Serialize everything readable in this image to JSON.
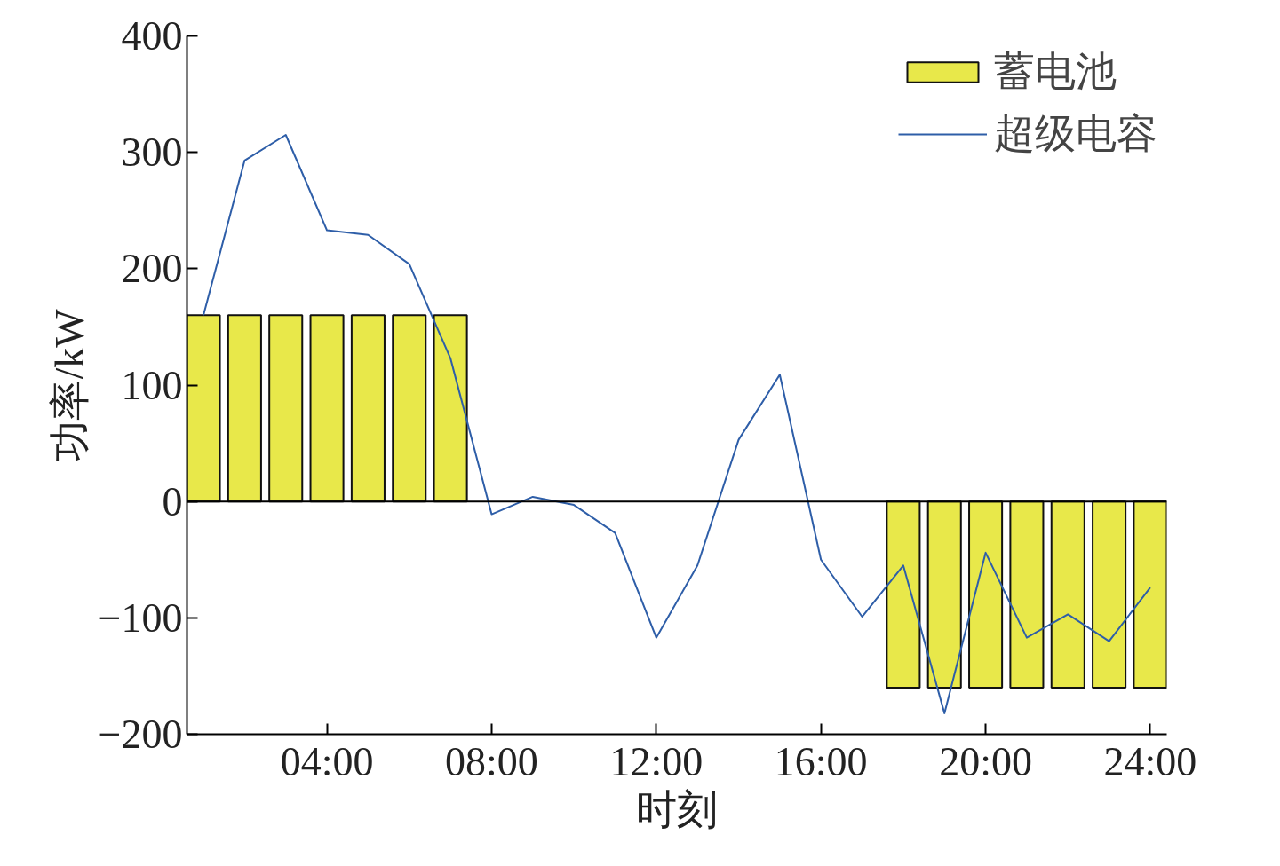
{
  "chart_data": {
    "type": "bar",
    "xlabel": "时刻",
    "ylabel": "功率/kW",
    "x": [
      1,
      2,
      3,
      4,
      5,
      6,
      7,
      8,
      9,
      10,
      11,
      12,
      13,
      14,
      15,
      16,
      17,
      18,
      19,
      20,
      21,
      22,
      23,
      24
    ],
    "series": [
      {
        "name": "蓄电池",
        "color": "#e8e84a",
        "values": [
          160,
          160,
          160,
          160,
          160,
          160,
          160,
          null,
          null,
          null,
          null,
          null,
          null,
          null,
          null,
          null,
          null,
          -160,
          -160,
          -160,
          -160,
          -160,
          -160,
          -160
        ]
      },
      {
        "name": "超级电容",
        "type": "line",
        "color": "#2e5ea8",
        "values": [
          160,
          293,
          315,
          233,
          229,
          204,
          123,
          -11,
          4,
          -3,
          -27,
          -117,
          -55,
          53,
          109,
          -50,
          -99,
          -55,
          -182,
          -44,
          -117,
          -97,
          -120,
          -74
        ]
      }
    ],
    "xlim": [
      0.6,
      24.4
    ],
    "xticks": [
      {
        "value": 4,
        "label": "04:00"
      },
      {
        "value": 8,
        "label": "08:00"
      },
      {
        "value": 12,
        "label": "12:00"
      },
      {
        "value": 16,
        "label": "16:00"
      },
      {
        "value": 20,
        "label": "20:00"
      },
      {
        "value": 24,
        "label": "24:00"
      }
    ],
    "ylim": [
      -200,
      400
    ],
    "yticks": [
      {
        "value": -200,
        "label": "−200"
      },
      {
        "value": -100,
        "label": "−100"
      },
      0,
      100,
      200,
      300,
      400
    ],
    "ref_lines": [
      {
        "axis": "y",
        "value": 0,
        "color": "#000000"
      }
    ],
    "legend": "top right",
    "grid": false,
    "line_style": "solid"
  }
}
